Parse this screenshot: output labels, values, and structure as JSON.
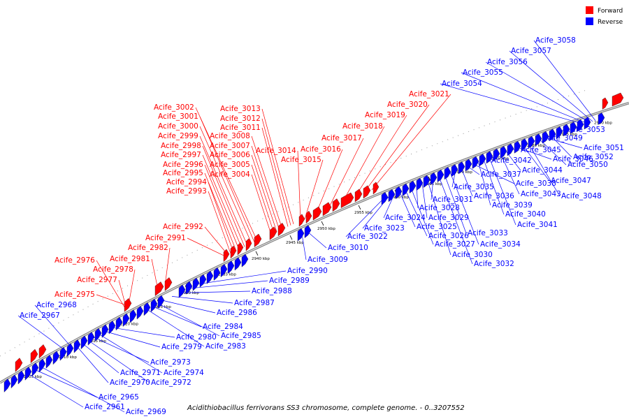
{
  "legend": {
    "items": [
      {
        "label": "Forward",
        "color": "#ff0000"
      },
      {
        "label": "Reverse",
        "color": "#0000ff"
      }
    ]
  },
  "caption": "Acidithiobacillus ferrivorans SS3 chromosome, complete genome. - 0..3207552",
  "scale": {
    "unit": "kbp",
    "ticks": [
      2905,
      2910,
      2915,
      2920,
      2925,
      2930,
      2935,
      2940,
      2945,
      2950,
      2955,
      2960,
      2965,
      2970,
      2975,
      2980,
      2985,
      2990
    ]
  },
  "forward_genes": [
    "Acife_2975",
    "Acife_2976",
    "Acife_2977",
    "Acife_2978",
    "Acife_2981",
    "Acife_2982",
    "Acife_2991",
    "Acife_2992",
    "Acife_2993",
    "Acife_2994",
    "Acife_2995",
    "Acife_2996",
    "Acife_2997",
    "Acife_2998",
    "Acife_2999",
    "Acife_3000",
    "Acife_3001",
    "Acife_3002",
    "Acife_3004",
    "Acife_3005",
    "Acife_3006",
    "Acife_3007",
    "Acife_3008",
    "Acife_3011",
    "Acife_3012",
    "Acife_3013",
    "Acife_3014",
    "Acife_3015",
    "Acife_3016",
    "Acife_3017",
    "Acife_3018",
    "Acife_3019",
    "Acife_3020",
    "Acife_3021"
  ],
  "reverse_genes": [
    "Acife_2961",
    "Acife_2965",
    "Acife_2967",
    "Acife_2968",
    "Acife_2969",
    "Acife_2970",
    "Acife_2971",
    "Acife_2972",
    "Acife_2973",
    "Acife_2974",
    "Acife_2979",
    "Acife_2980",
    "Acife_2983",
    "Acife_2984",
    "Acife_2985",
    "Acife_2986",
    "Acife_2987",
    "Acife_2988",
    "Acife_2989",
    "Acife_2990",
    "Acife_3009",
    "Acife_3010",
    "Acife_3022",
    "Acife_3023",
    "Acife_3024",
    "Acife_3025",
    "Acife_3026",
    "Acife_3027",
    "Acife_3028",
    "Acife_3029",
    "Acife_3030",
    "Acife_3031",
    "Acife_3032",
    "Acife_3033",
    "Acife_3034",
    "Acife_3035",
    "Acife_3036",
    "Acife_3037",
    "Acife_3038",
    "Acife_3039",
    "Acife_3040",
    "Acife_3041",
    "Acife_3042",
    "Acife_3043",
    "Acife_3044",
    "Acife_3045",
    "Acife_3046",
    "Acife_3047",
    "Acife_3048",
    "Acife_3049",
    "Acife_3050",
    "Acife_3051",
    "Acife_3052",
    "Acife_3053",
    "Acife_3054",
    "Acife_3055",
    "Acife_3056",
    "Acife_3057",
    "Acife_3058"
  ]
}
